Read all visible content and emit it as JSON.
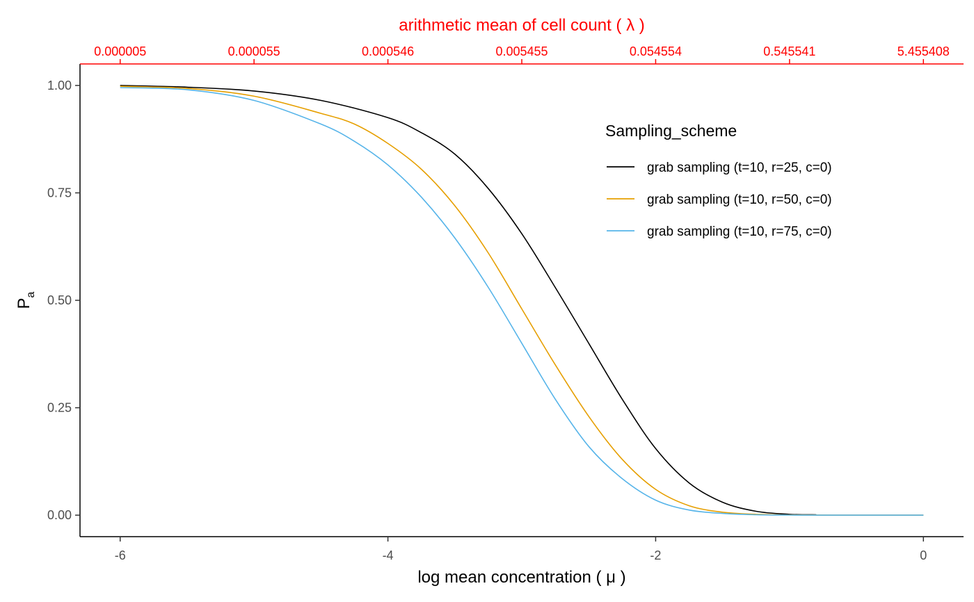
{
  "chart_data": {
    "type": "line",
    "xlabel": "log mean concentration  ( μ )",
    "ylabel": "P",
    "ylabel_subscript": "a",
    "x2label": "arithmetic mean of cell count ( λ )",
    "xlim": [
      -6.3,
      0.3
    ],
    "ylim": [
      -0.05,
      1.05
    ],
    "x_ticks": [
      -6,
      -4,
      -2,
      0
    ],
    "x_tick_labels": [
      "-6",
      "-4",
      "-2",
      "0"
    ],
    "y_ticks": [
      0,
      0.25,
      0.5,
      0.75,
      1.0
    ],
    "y_tick_labels": [
      "0.00",
      "0.25",
      "0.50",
      "0.75",
      "1.00"
    ],
    "x2_ticks": [
      -6,
      -5,
      -4,
      -3,
      -2,
      -1,
      0
    ],
    "x2_tick_labels": [
      "0.000005",
      "0.000055",
      "0.000546",
      "0.005455",
      "0.054554",
      "0.545541",
      "5.455408"
    ],
    "grid": false,
    "legend": {
      "title": "Sampling_scheme",
      "position": "top-right"
    },
    "colors": {
      "top_axis": "#ff0000"
    },
    "series": [
      {
        "name": "grab sampling (t=10, r=25, c=0)",
        "color": "#000000",
        "x": [
          -6.0,
          -5.5,
          -5.0,
          -4.5,
          -4.0,
          -3.75,
          -3.5,
          -3.25,
          -3.0,
          -2.75,
          -2.5,
          -2.25,
          -2.0,
          -1.75,
          -1.5,
          -1.25,
          -1.0,
          -0.8
        ],
        "y": [
          1.0,
          0.996,
          0.987,
          0.965,
          0.925,
          0.89,
          0.84,
          0.76,
          0.655,
          0.53,
          0.4,
          0.27,
          0.155,
          0.075,
          0.03,
          0.009,
          0.002,
          0.001
        ]
      },
      {
        "name": "grab sampling (t=10, r=50, c=0)",
        "color": "#e69f00",
        "x": [
          -6.0,
          -5.5,
          -5.0,
          -4.5,
          -4.25,
          -4.0,
          -3.75,
          -3.5,
          -3.25,
          -3.0,
          -2.75,
          -2.5,
          -2.25,
          -2.0,
          -1.75,
          -1.5,
          -1.25,
          -1.0,
          -0.5,
          0.0
        ],
        "y": [
          0.998,
          0.993,
          0.975,
          0.935,
          0.91,
          0.865,
          0.805,
          0.72,
          0.61,
          0.48,
          0.35,
          0.23,
          0.13,
          0.06,
          0.022,
          0.007,
          0.002,
          0.0005,
          0.0,
          0.0
        ]
      },
      {
        "name": "grab sampling (t=10, r=75, c=0)",
        "color": "#56b4e9",
        "x": [
          -6.0,
          -5.5,
          -5.0,
          -4.5,
          -4.25,
          -4.0,
          -3.75,
          -3.5,
          -3.25,
          -3.0,
          -2.75,
          -2.5,
          -2.25,
          -2.0,
          -1.75,
          -1.5,
          -1.25,
          -1.0,
          -0.5,
          0.0
        ],
        "y": [
          0.995,
          0.99,
          0.965,
          0.91,
          0.87,
          0.815,
          0.74,
          0.645,
          0.53,
          0.4,
          0.27,
          0.16,
          0.085,
          0.035,
          0.012,
          0.004,
          0.001,
          0.0002,
          0.0,
          0.0
        ]
      }
    ]
  }
}
